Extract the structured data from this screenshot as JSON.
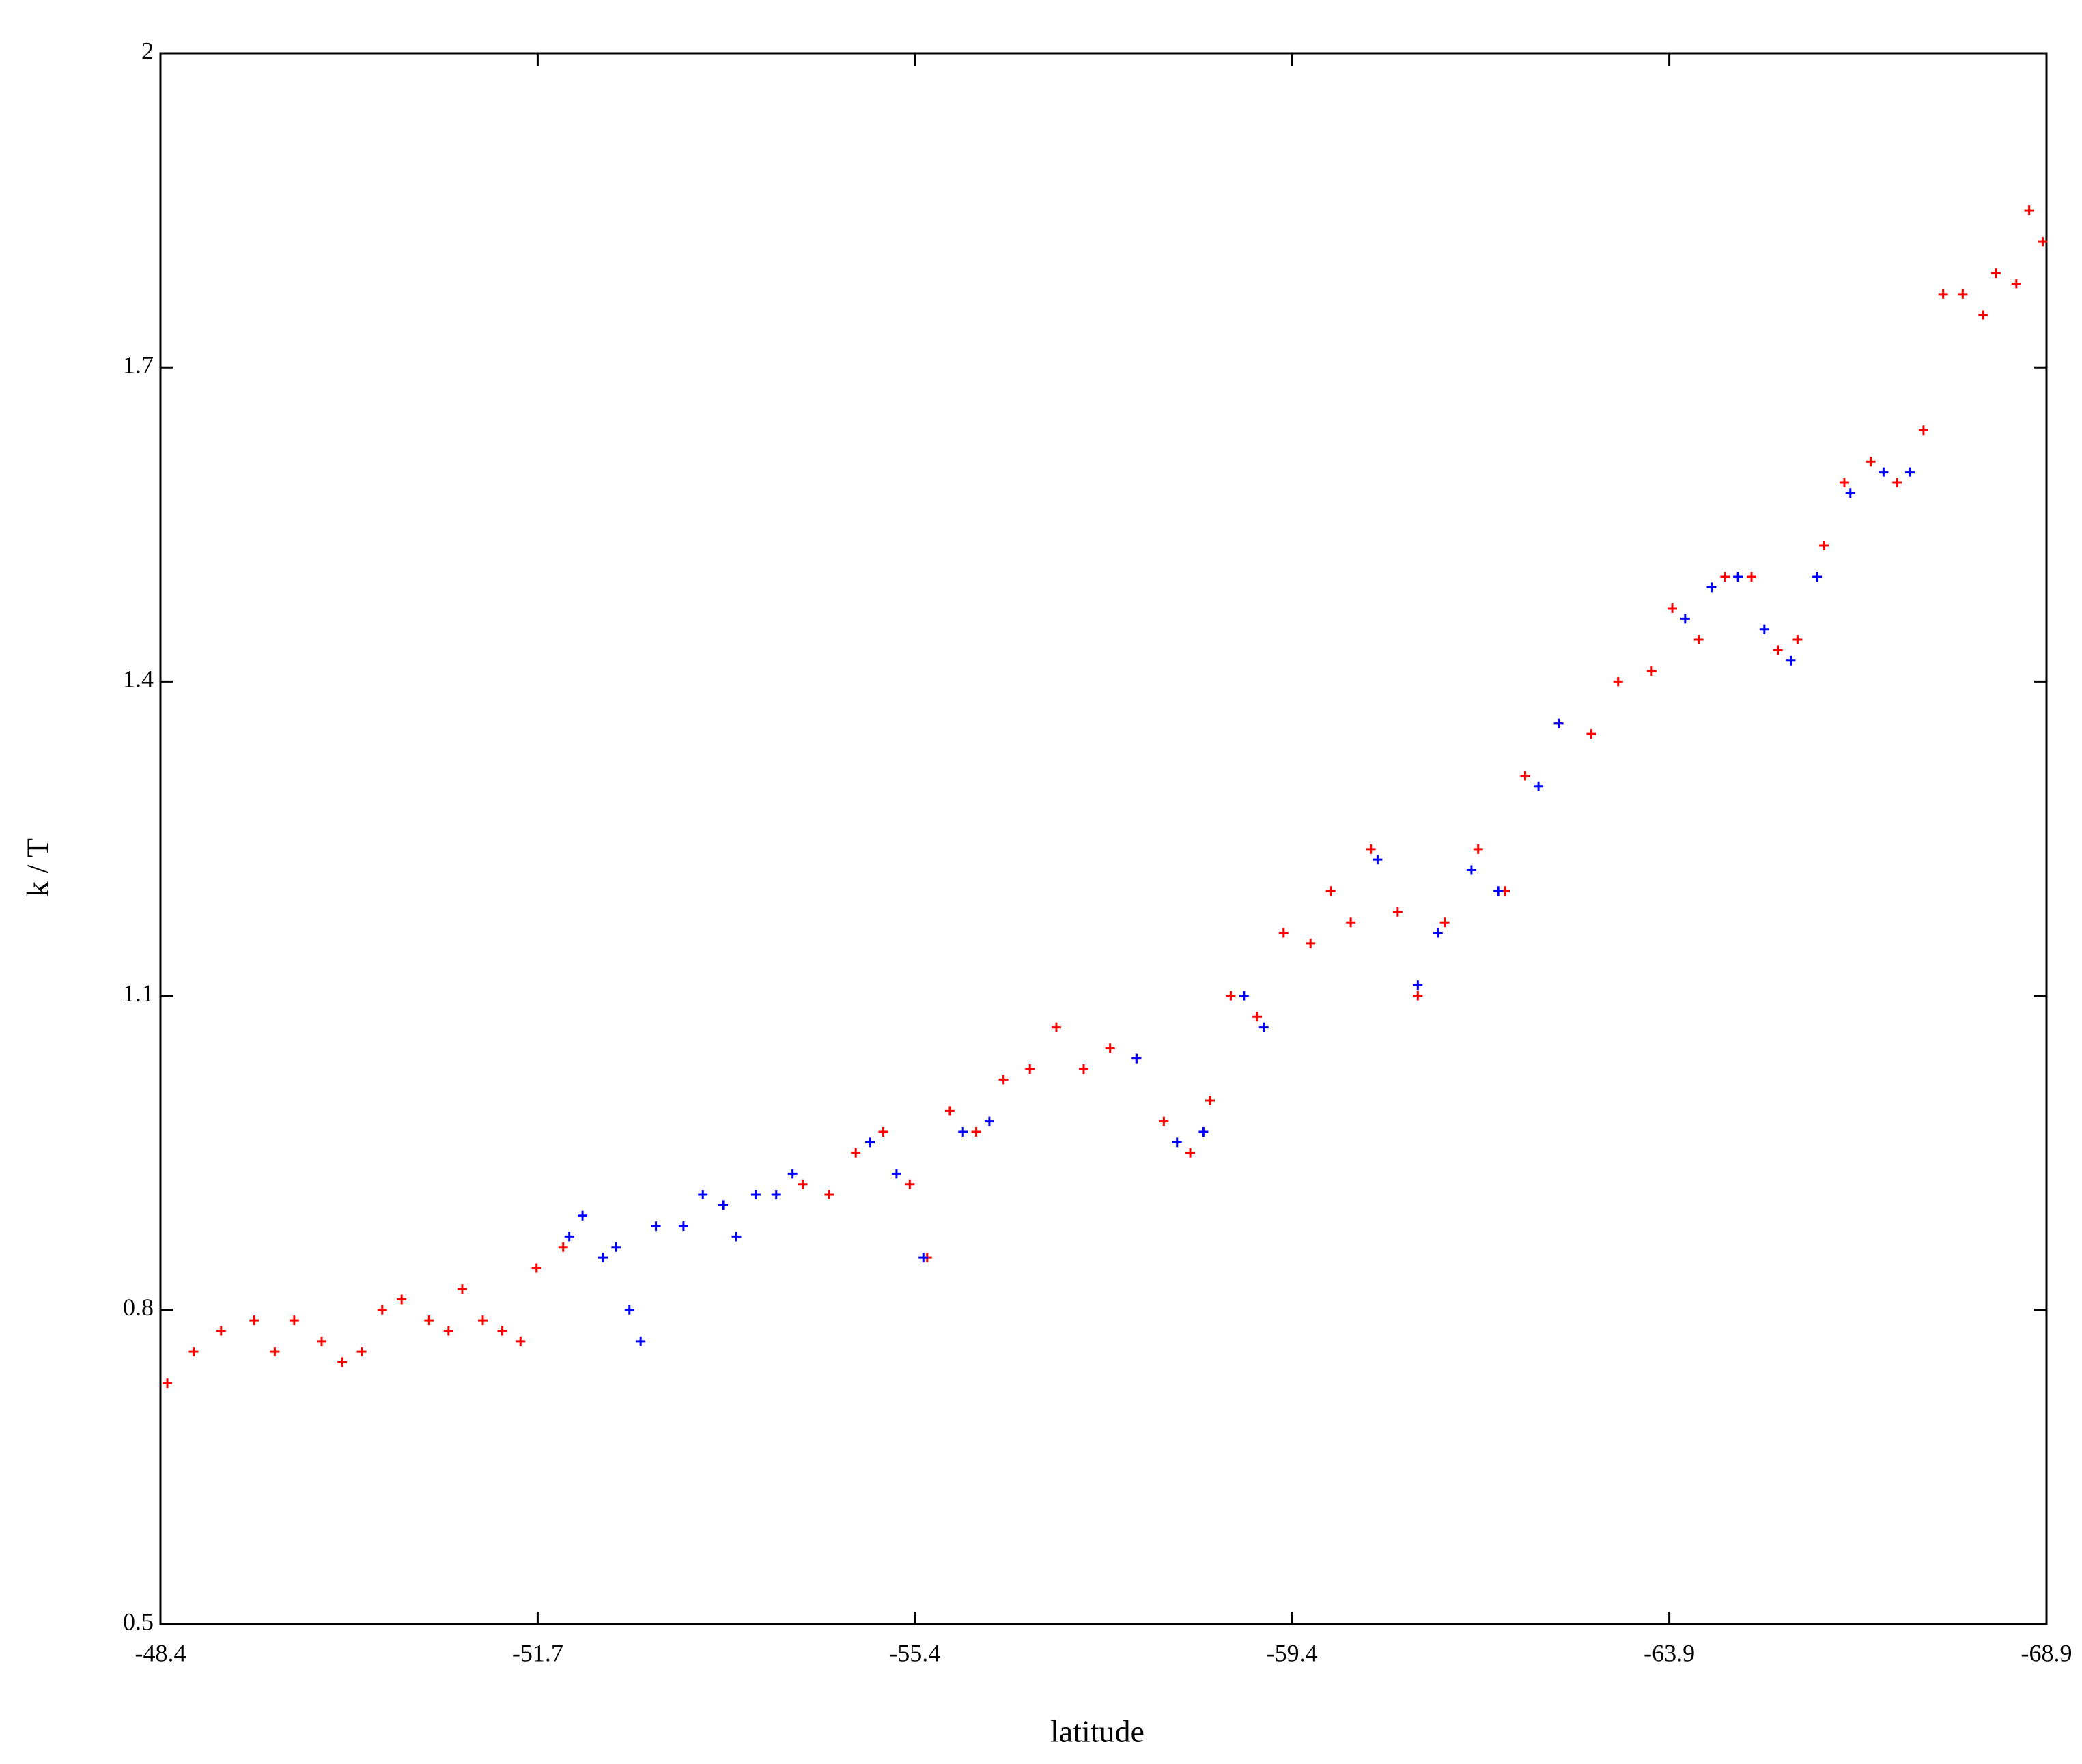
{
  "chart_data": {
    "type": "scatter",
    "x_label": "latitude",
    "y_label": "k / T",
    "xlim": [
      -48.4,
      -68.9
    ],
    "xticks": [
      -48.4,
      -51.7,
      -55.4,
      -59.4,
      -63.9,
      -68.9
    ],
    "ylim": [
      0.5,
      2
    ],
    "yticks": [
      0.5,
      0.8,
      1.1,
      1.4,
      1.7,
      2
    ],
    "grid": false,
    "series": [
      {
        "color": "#ff0000",
        "x": [
          -48.46,
          -48.69,
          -48.93,
          -49.22,
          -49.4,
          -49.57,
          -49.81,
          -49.99,
          -50.16,
          -50.34,
          -50.51,
          -50.75,
          -50.92,
          -51.04,
          -51.22,
          -51.39,
          -51.55,
          -51.69,
          -51.95,
          -54.3,
          -54.56,
          -54.82,
          -55.09,
          -55.35,
          -55.53,
          -55.77,
          -56.05,
          -56.34,
          -56.62,
          -56.9,
          -57.19,
          -57.47,
          -57.75,
          -58.04,
          -58.32,
          -58.53,
          -58.75,
          -59.03,
          -59.31,
          -59.62,
          -59.86,
          -60.1,
          -60.34,
          -60.66,
          -60.9,
          -61.22,
          -61.62,
          -61.94,
          -62.18,
          -62.58,
          -62.97,
          -63.29,
          -63.69,
          -63.94,
          -64.29,
          -64.64,
          -64.99,
          -65.34,
          -65.6,
          -65.95,
          -66.22,
          -66.57,
          -66.92,
          -67.27,
          -67.53,
          -67.79,
          -68.06,
          -68.23,
          -68.5,
          -68.67,
          -68.85
        ],
        "values": [
          0.73,
          0.76,
          0.78,
          0.79,
          0.76,
          0.79,
          0.77,
          0.75,
          0.76,
          0.8,
          0.81,
          0.79,
          0.78,
          0.82,
          0.79,
          0.78,
          0.77,
          0.84,
          0.86,
          0.92,
          0.91,
          0.95,
          0.97,
          0.92,
          0.85,
          0.99,
          0.97,
          1.02,
          1.03,
          1.07,
          1.03,
          1.05,
          1.04,
          0.98,
          0.95,
          1.0,
          1.1,
          1.08,
          1.16,
          1.15,
          1.2,
          1.17,
          1.24,
          1.18,
          1.1,
          1.17,
          1.24,
          1.2,
          1.31,
          1.36,
          1.35,
          1.4,
          1.41,
          1.47,
          1.44,
          1.5,
          1.5,
          1.43,
          1.44,
          1.53,
          1.59,
          1.61,
          1.59,
          1.64,
          1.77,
          1.77,
          1.75,
          1.79,
          1.78,
          1.85,
          1.82
        ]
      },
      {
        "color": "#0000ff",
        "x": [
          -52.01,
          -52.14,
          -52.34,
          -52.47,
          -52.6,
          -52.71,
          -52.86,
          -53.13,
          -53.32,
          -53.52,
          -53.65,
          -53.84,
          -54.04,
          -54.2,
          -54.96,
          -55.22,
          -55.49,
          -55.91,
          -56.19,
          -57.75,
          -58.18,
          -58.46,
          -58.89,
          -59.1,
          -60.42,
          -60.9,
          -61.14,
          -61.54,
          -61.86,
          -62.34,
          -62.58,
          -64.11,
          -64.46,
          -64.81,
          -65.16,
          -65.51,
          -65.86,
          -66.3,
          -66.74,
          -67.09
        ],
        "values": [
          0.87,
          0.89,
          0.85,
          0.86,
          0.8,
          0.77,
          0.88,
          0.88,
          0.91,
          0.9,
          0.87,
          0.91,
          0.91,
          0.93,
          0.96,
          0.93,
          0.85,
          0.97,
          0.98,
          1.04,
          0.96,
          0.97,
          1.1,
          1.07,
          1.23,
          1.11,
          1.16,
          1.22,
          1.2,
          1.3,
          1.36,
          1.46,
          1.49,
          1.5,
          1.45,
          1.42,
          1.5,
          1.58,
          1.6,
          1.6
        ]
      }
    ]
  }
}
